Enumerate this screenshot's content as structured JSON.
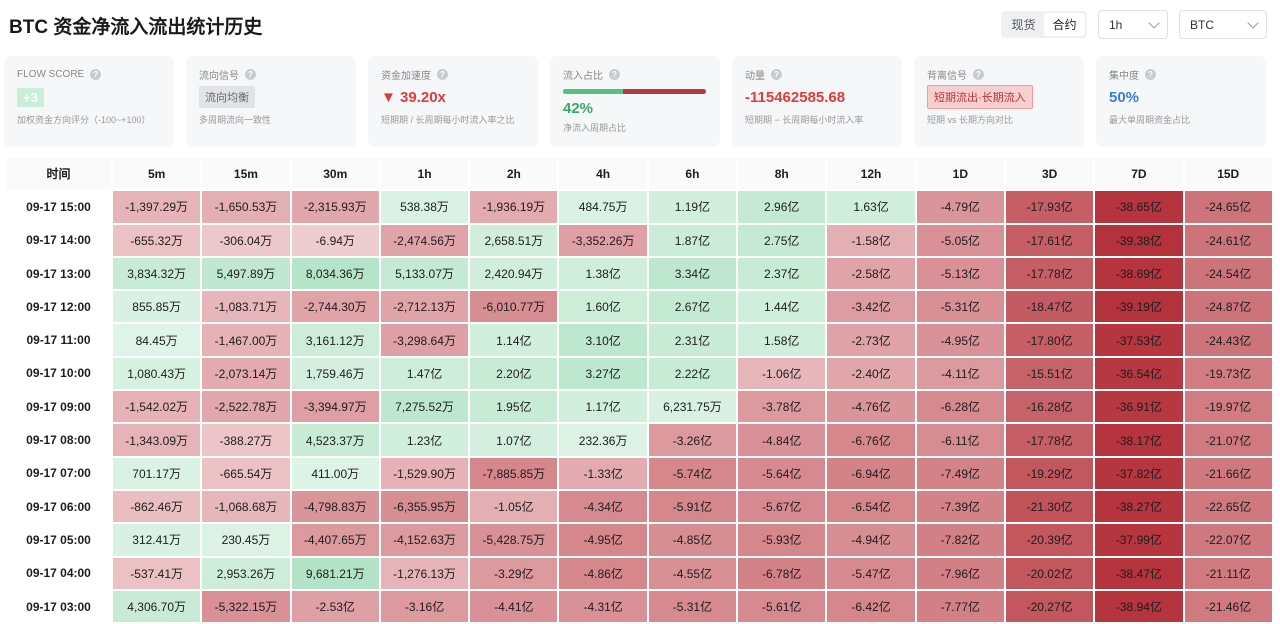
{
  "title": "BTC 资金净流入流出统计历史",
  "market_toggle": {
    "options": [
      "现货",
      "合约"
    ],
    "selected": "合约"
  },
  "interval_select": {
    "value": "1h"
  },
  "symbol_select": {
    "value": "BTC"
  },
  "cards": [
    {
      "label": "FLOW SCORE",
      "value": "+3",
      "sub": "加权资金方向评分（-100~+100）"
    },
    {
      "label": "流向信号",
      "value": "流向均衡",
      "sub": "多周期流向一致性"
    },
    {
      "label": "资金加速度",
      "value": "▼ 39.20x",
      "sub": "短期期 / 长周期每小时流入率之比"
    },
    {
      "label": "流入占比",
      "value": "42%",
      "sub": "净流入周期占比",
      "ratio": 0.42
    },
    {
      "label": "动量",
      "value": "-115462585.68",
      "sub": "短期期 − 长周期每小时流入率"
    },
    {
      "label": "背离信号",
      "value": "短期流出·长期流入",
      "sub": "短期 vs 长期方向对比"
    },
    {
      "label": "集中度",
      "value": "50%",
      "sub": "最大单周期资金占比"
    }
  ],
  "colors": {
    "positive": "#4caf78",
    "negative": "#b5303a",
    "accent_blue": "#3d7bdc",
    "red_text": "#e03b3b"
  },
  "table": {
    "columns": [
      "时间",
      "5m",
      "15m",
      "30m",
      "1h",
      "2h",
      "4h",
      "6h",
      "8h",
      "12h",
      "1D",
      "3D",
      "7D",
      "15D"
    ],
    "rows": [
      {
        "time": "09-17 15:00",
        "cells": [
          "-1,397.29万",
          "-1,650.53万",
          "-2,315.93万",
          "538.38万",
          "-1,936.19万",
          "484.75万",
          "1.19亿",
          "2.96亿",
          "1.63亿",
          "-4.79亿",
          "-17.93亿",
          "-38.65亿",
          "-24.65亿"
        ],
        "intensity": [
          0.25,
          0.28,
          0.32,
          0.2,
          0.3,
          0.2,
          0.3,
          0.5,
          0.35,
          0.42,
          0.72,
          0.95,
          0.6
        ]
      },
      {
        "time": "09-17 14:00",
        "cells": [
          "-655.32万",
          "-306.04万",
          "-6.94万",
          "-2,474.56万",
          "2,658.51万",
          "-3,352.26万",
          "1.87亿",
          "2.75亿",
          "-1.58亿",
          "-5.05亿",
          "-17.61亿",
          "-39.38亿",
          "-24.61亿"
        ],
        "intensity": [
          0.18,
          0.15,
          0.12,
          0.34,
          0.32,
          0.36,
          0.4,
          0.48,
          0.28,
          0.44,
          0.72,
          0.96,
          0.6
        ]
      },
      {
        "time": "09-17 13:00",
        "cells": [
          "3,834.32万",
          "5,497.89万",
          "8,034.36万",
          "5,133.07万",
          "2,420.94万",
          "1.38亿",
          "3.34亿",
          "2.37亿",
          "-2.58亿",
          "-5.13亿",
          "-17.78亿",
          "-38.69亿",
          "-24.54亿"
        ],
        "intensity": [
          0.45,
          0.55,
          0.7,
          0.5,
          0.32,
          0.35,
          0.6,
          0.45,
          0.34,
          0.44,
          0.72,
          0.95,
          0.6
        ]
      },
      {
        "time": "09-17 12:00",
        "cells": [
          "855.85万",
          "-1,083.71万",
          "-2,744.30万",
          "-2,712.13万",
          "-6,010.77万",
          "1.60亿",
          "2.67亿",
          "1.44亿",
          "-3.42亿",
          "-5.31亿",
          "-18.47亿",
          "-39.19亿",
          "-24.87亿"
        ],
        "intensity": [
          0.22,
          0.24,
          0.34,
          0.34,
          0.46,
          0.38,
          0.5,
          0.33,
          0.38,
          0.45,
          0.74,
          0.96,
          0.6
        ]
      },
      {
        "time": "09-17 11:00",
        "cells": [
          "84.45万",
          "-1,467.00万",
          "3,161.12万",
          "-3,298.64万",
          "1.14亿",
          "3.10亿",
          "2.31亿",
          "1.58亿",
          "-2.73亿",
          "-4.95亿",
          "-17.80亿",
          "-37.53亿",
          "-24.43亿"
        ],
        "intensity": [
          0.12,
          0.26,
          0.38,
          0.36,
          0.3,
          0.58,
          0.45,
          0.35,
          0.35,
          0.43,
          0.72,
          0.94,
          0.6
        ]
      },
      {
        "time": "09-17 10:00",
        "cells": [
          "1,080.43万",
          "-2,073.14万",
          "1,759.46万",
          "1.47亿",
          "2.20亿",
          "3.27亿",
          "2.22亿",
          "-1.06亿",
          "-2.40亿",
          "-4.11亿",
          "-15.51亿",
          "-36.54亿",
          "-19.73亿"
        ],
        "intensity": [
          0.24,
          0.3,
          0.28,
          0.36,
          0.46,
          0.6,
          0.45,
          0.24,
          0.33,
          0.4,
          0.7,
          0.93,
          0.56
        ]
      },
      {
        "time": "09-17 09:00",
        "cells": [
          "-1,542.02万",
          "-2,522.78万",
          "-3,394.97万",
          "7,275.52万",
          "1.95亿",
          "1.17亿",
          "6,231.75万",
          "-3.78亿",
          "-4.76亿",
          "-6.28亿",
          "-16.28亿",
          "-36.91亿",
          "-19.97亿"
        ],
        "intensity": [
          0.26,
          0.32,
          0.37,
          0.6,
          0.44,
          0.3,
          0.22,
          0.4,
          0.42,
          0.48,
          0.7,
          0.93,
          0.56
        ]
      },
      {
        "time": "09-17 08:00",
        "cells": [
          "-1,343.09万",
          "-388.27万",
          "4,523.37万",
          "1.23亿",
          "1.07亿",
          "232.36万",
          "-3.26亿",
          "-4.84亿",
          "-6.76亿",
          "-6.11亿",
          "-17.78亿",
          "-38.17亿",
          "-21.07亿"
        ],
        "intensity": [
          0.25,
          0.16,
          0.45,
          0.3,
          0.28,
          0.18,
          0.4,
          0.44,
          0.5,
          0.47,
          0.72,
          0.95,
          0.57
        ]
      },
      {
        "time": "09-17 07:00",
        "cells": [
          "701.17万",
          "-665.54万",
          "411.00万",
          "-1,529.90万",
          "-7,885.85万",
          "-1.33亿",
          "-5.74亿",
          "-5.64亿",
          "-6.94亿",
          "-7.49亿",
          "-19.29亿",
          "-37.82亿",
          "-21.66亿"
        ],
        "intensity": [
          0.2,
          0.18,
          0.16,
          0.26,
          0.5,
          0.3,
          0.5,
          0.48,
          0.52,
          0.52,
          0.76,
          0.94,
          0.58
        ]
      },
      {
        "time": "09-17 06:00",
        "cells": [
          "-862.46万",
          "-1,068.68万",
          "-4,798.83万",
          "-6,355.95万",
          "-1.05亿",
          "-4.34亿",
          "-5.91亿",
          "-5.67亿",
          "-6.54亿",
          "-7.39亿",
          "-21.30亿",
          "-38.27亿",
          "-22.65亿"
        ],
        "intensity": [
          0.2,
          0.24,
          0.42,
          0.46,
          0.28,
          0.48,
          0.5,
          0.48,
          0.5,
          0.52,
          0.78,
          0.95,
          0.58
        ]
      },
      {
        "time": "09-17 05:00",
        "cells": [
          "312.41万",
          "230.45万",
          "-4,407.65万",
          "-4,152.63万",
          "-5,428.75万",
          "-4.95亿",
          "-4.85亿",
          "-5.93亿",
          "-4.94亿",
          "-7.82亿",
          "-20.39亿",
          "-37.99亿",
          "-22.07亿"
        ],
        "intensity": [
          0.22,
          0.18,
          0.4,
          0.4,
          0.44,
          0.5,
          0.46,
          0.5,
          0.46,
          0.54,
          0.76,
          0.94,
          0.58
        ]
      },
      {
        "time": "09-17 04:00",
        "cells": [
          "-537.41万",
          "2,953.26万",
          "9,681.21万",
          "-1,276.13万",
          "-3.29亿",
          "-4.86亿",
          "-4.55亿",
          "-6.78亿",
          "-5.47亿",
          "-7.96亿",
          "-20.02亿",
          "-38.47亿",
          "-21.11亿"
        ],
        "intensity": [
          0.18,
          0.38,
          0.75,
          0.25,
          0.4,
          0.5,
          0.45,
          0.52,
          0.48,
          0.54,
          0.76,
          0.95,
          0.57
        ]
      },
      {
        "time": "09-17 03:00",
        "cells": [
          "4,306.70万",
          "-5,322.15万",
          "-2.53亿",
          "-3.16亿",
          "-4.41亿",
          "-4.31亿",
          "-5.31亿",
          "-5.61亿",
          "-6.42亿",
          "-7.77亿",
          "-20.27亿",
          "-38.94亿",
          "-21.46亿"
        ],
        "intensity": [
          0.45,
          0.44,
          0.36,
          0.4,
          0.44,
          0.44,
          0.48,
          0.48,
          0.5,
          0.54,
          0.76,
          0.95,
          0.57
        ]
      }
    ]
  }
}
